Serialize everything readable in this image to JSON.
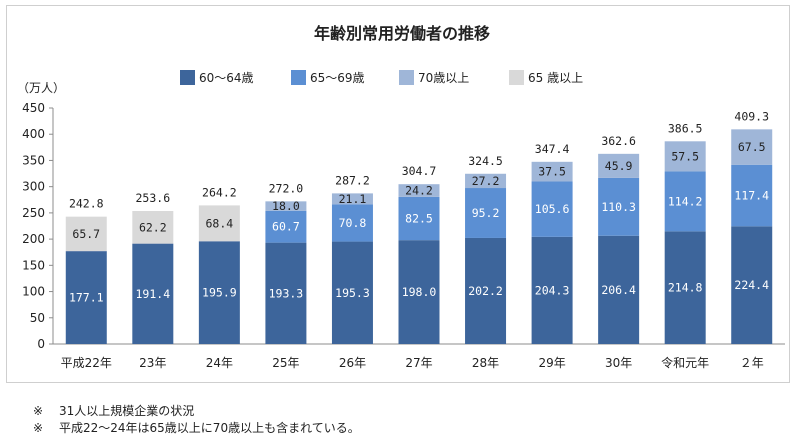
{
  "chart_data": {
    "type": "bar",
    "stacked": true,
    "title": "年齢別常用労働者の推移",
    "ylabel": "（万人）",
    "ylim": [
      0,
      450
    ],
    "yticks": [
      0,
      50,
      100,
      150,
      200,
      250,
      300,
      350,
      400,
      450
    ],
    "grid": false,
    "legend_position": "top",
    "categories": [
      "平成22年",
      "23年",
      "24年",
      "25年",
      "26年",
      "27年",
      "28年",
      "29年",
      "30年",
      "令和元年",
      "２年"
    ],
    "series": [
      {
        "name": "60～64歳",
        "color": "#3d659b",
        "values": [
          177.1,
          191.4,
          195.9,
          193.3,
          195.3,
          198.0,
          202.2,
          204.3,
          206.4,
          214.8,
          224.4
        ],
        "labels": [
          "177.1",
          "191.4",
          "195.9",
          "193.3",
          "195.3",
          "198.0",
          "202.2",
          "204.3",
          "206.4",
          "214.8",
          "224.4"
        ]
      },
      {
        "name": "65～69歳",
        "color": "#5b8fd3",
        "values": [
          null,
          null,
          null,
          60.7,
          70.8,
          82.5,
          95.2,
          105.6,
          110.3,
          114.2,
          117.4
        ],
        "labels": [
          "",
          "",
          "",
          "60.7",
          "70.8",
          "82.5",
          "95.2",
          "105.6",
          "110.3",
          "114.2",
          "117.4"
        ]
      },
      {
        "name": "70歳以上",
        "color": "#9fb6d8",
        "values": [
          null,
          null,
          null,
          18.0,
          21.1,
          24.2,
          27.2,
          37.5,
          45.9,
          57.5,
          67.5
        ],
        "labels": [
          "",
          "",
          "",
          "18.0",
          "21.1",
          "24.2",
          "27.2",
          "37.5",
          "45.9",
          "57.5",
          "67.5"
        ]
      },
      {
        "name": "65 歳以上",
        "color": "#d9d9d9",
        "values": [
          65.7,
          62.2,
          68.4,
          null,
          null,
          null,
          null,
          null,
          null,
          null,
          null
        ],
        "labels": [
          "65.7",
          "62.2",
          "68.4",
          "",
          "",
          "",
          "",
          "",
          "",
          "",
          ""
        ]
      }
    ],
    "totals": [
      242.8,
      253.6,
      264.2,
      272.0,
      287.2,
      304.7,
      324.5,
      347.4,
      362.6,
      386.5,
      409.3
    ],
    "total_labels": [
      "242.8",
      "253.6",
      "264.2",
      "272.0",
      "287.2",
      "304.7",
      "324.5",
      "347.4",
      "362.6",
      "386.5",
      "409.3"
    ]
  },
  "notes": [
    {
      "mark": "※",
      "text": "31人以上規模企業の状況"
    },
    {
      "mark": "※",
      "text": "平成22～24年は65歳以上に70歳以上も含まれている。"
    }
  ]
}
